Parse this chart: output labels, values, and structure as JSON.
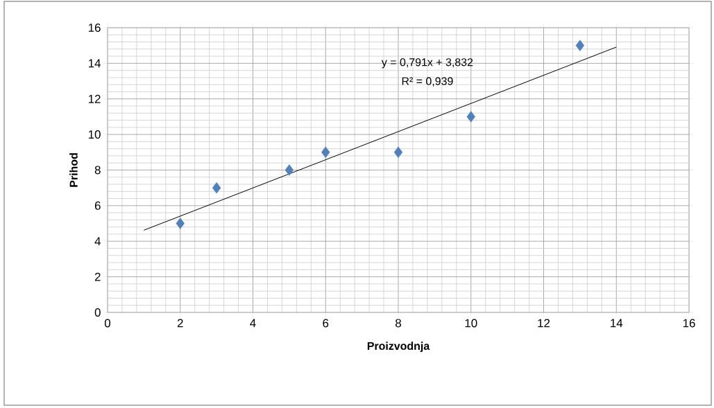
{
  "chart_data": {
    "type": "scatter",
    "xlabel": "Proizvodnja",
    "ylabel": "Prihod",
    "x": [
      2,
      3,
      5,
      6,
      8,
      10,
      13
    ],
    "series": [
      {
        "color": "#4f81bd",
        "marker": "diamond",
        "values": [
          5,
          7,
          8,
          9,
          9,
          11,
          15
        ]
      },
      {
        "type": "line",
        "color": "#000000",
        "marker": "none",
        "x": [
          1,
          14
        ],
        "values": [
          4.62,
          14.91
        ]
      }
    ],
    "xlim": [
      0,
      16
    ],
    "ylim": [
      0,
      16
    ],
    "xticks": [
      0,
      2,
      4,
      6,
      8,
      10,
      12,
      14,
      16
    ],
    "yticks": [
      0,
      2,
      4,
      6,
      8,
      10,
      12,
      14,
      16
    ],
    "grid": true,
    "annotations": [
      "y = 0,791x + 3,832",
      "R² = 0,939"
    ]
  }
}
